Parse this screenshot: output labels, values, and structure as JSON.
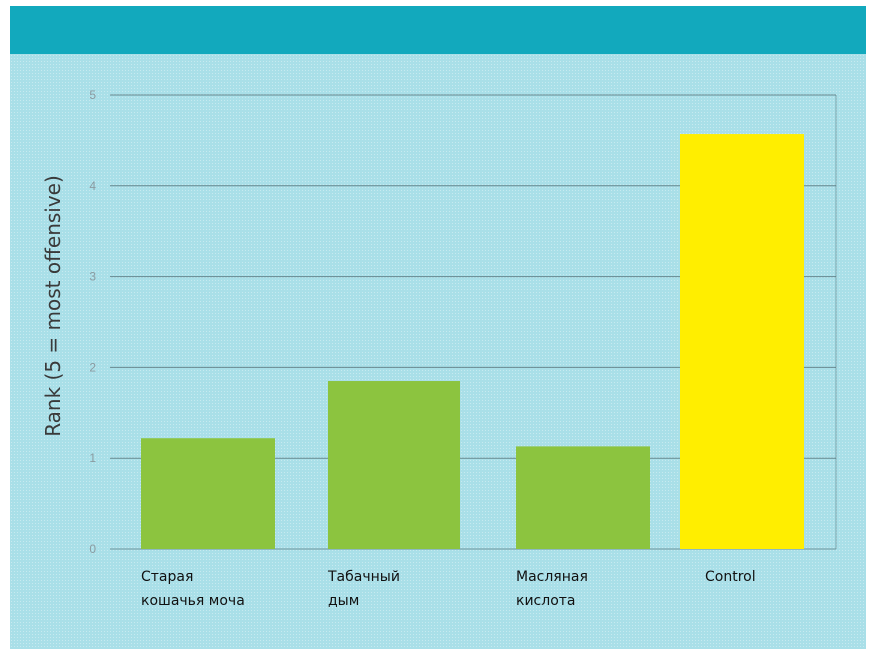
{
  "chart_data": {
    "type": "bar",
    "ylabel": "Rank (5 = most offensive)",
    "xlabel": "",
    "ylim": [
      0,
      5
    ],
    "yticks": [
      0,
      1,
      2,
      3,
      4,
      5
    ],
    "grid": true,
    "categories": [
      [
        "Старая",
        "кошачья моча"
      ],
      [
        "Табачный",
        "дым"
      ],
      [
        "Масляная",
        "кислота"
      ],
      [
        "Control"
      ]
    ],
    "values": [
      1.22,
      1.85,
      1.13,
      4.57
    ],
    "colors": [
      "#8cc43f",
      "#8cc43f",
      "#8cc43f",
      "#ffee00"
    ]
  },
  "colors": {
    "header_band": "#12a9bd",
    "background": "#a9dfe8",
    "gridline": "#4f6a70"
  }
}
